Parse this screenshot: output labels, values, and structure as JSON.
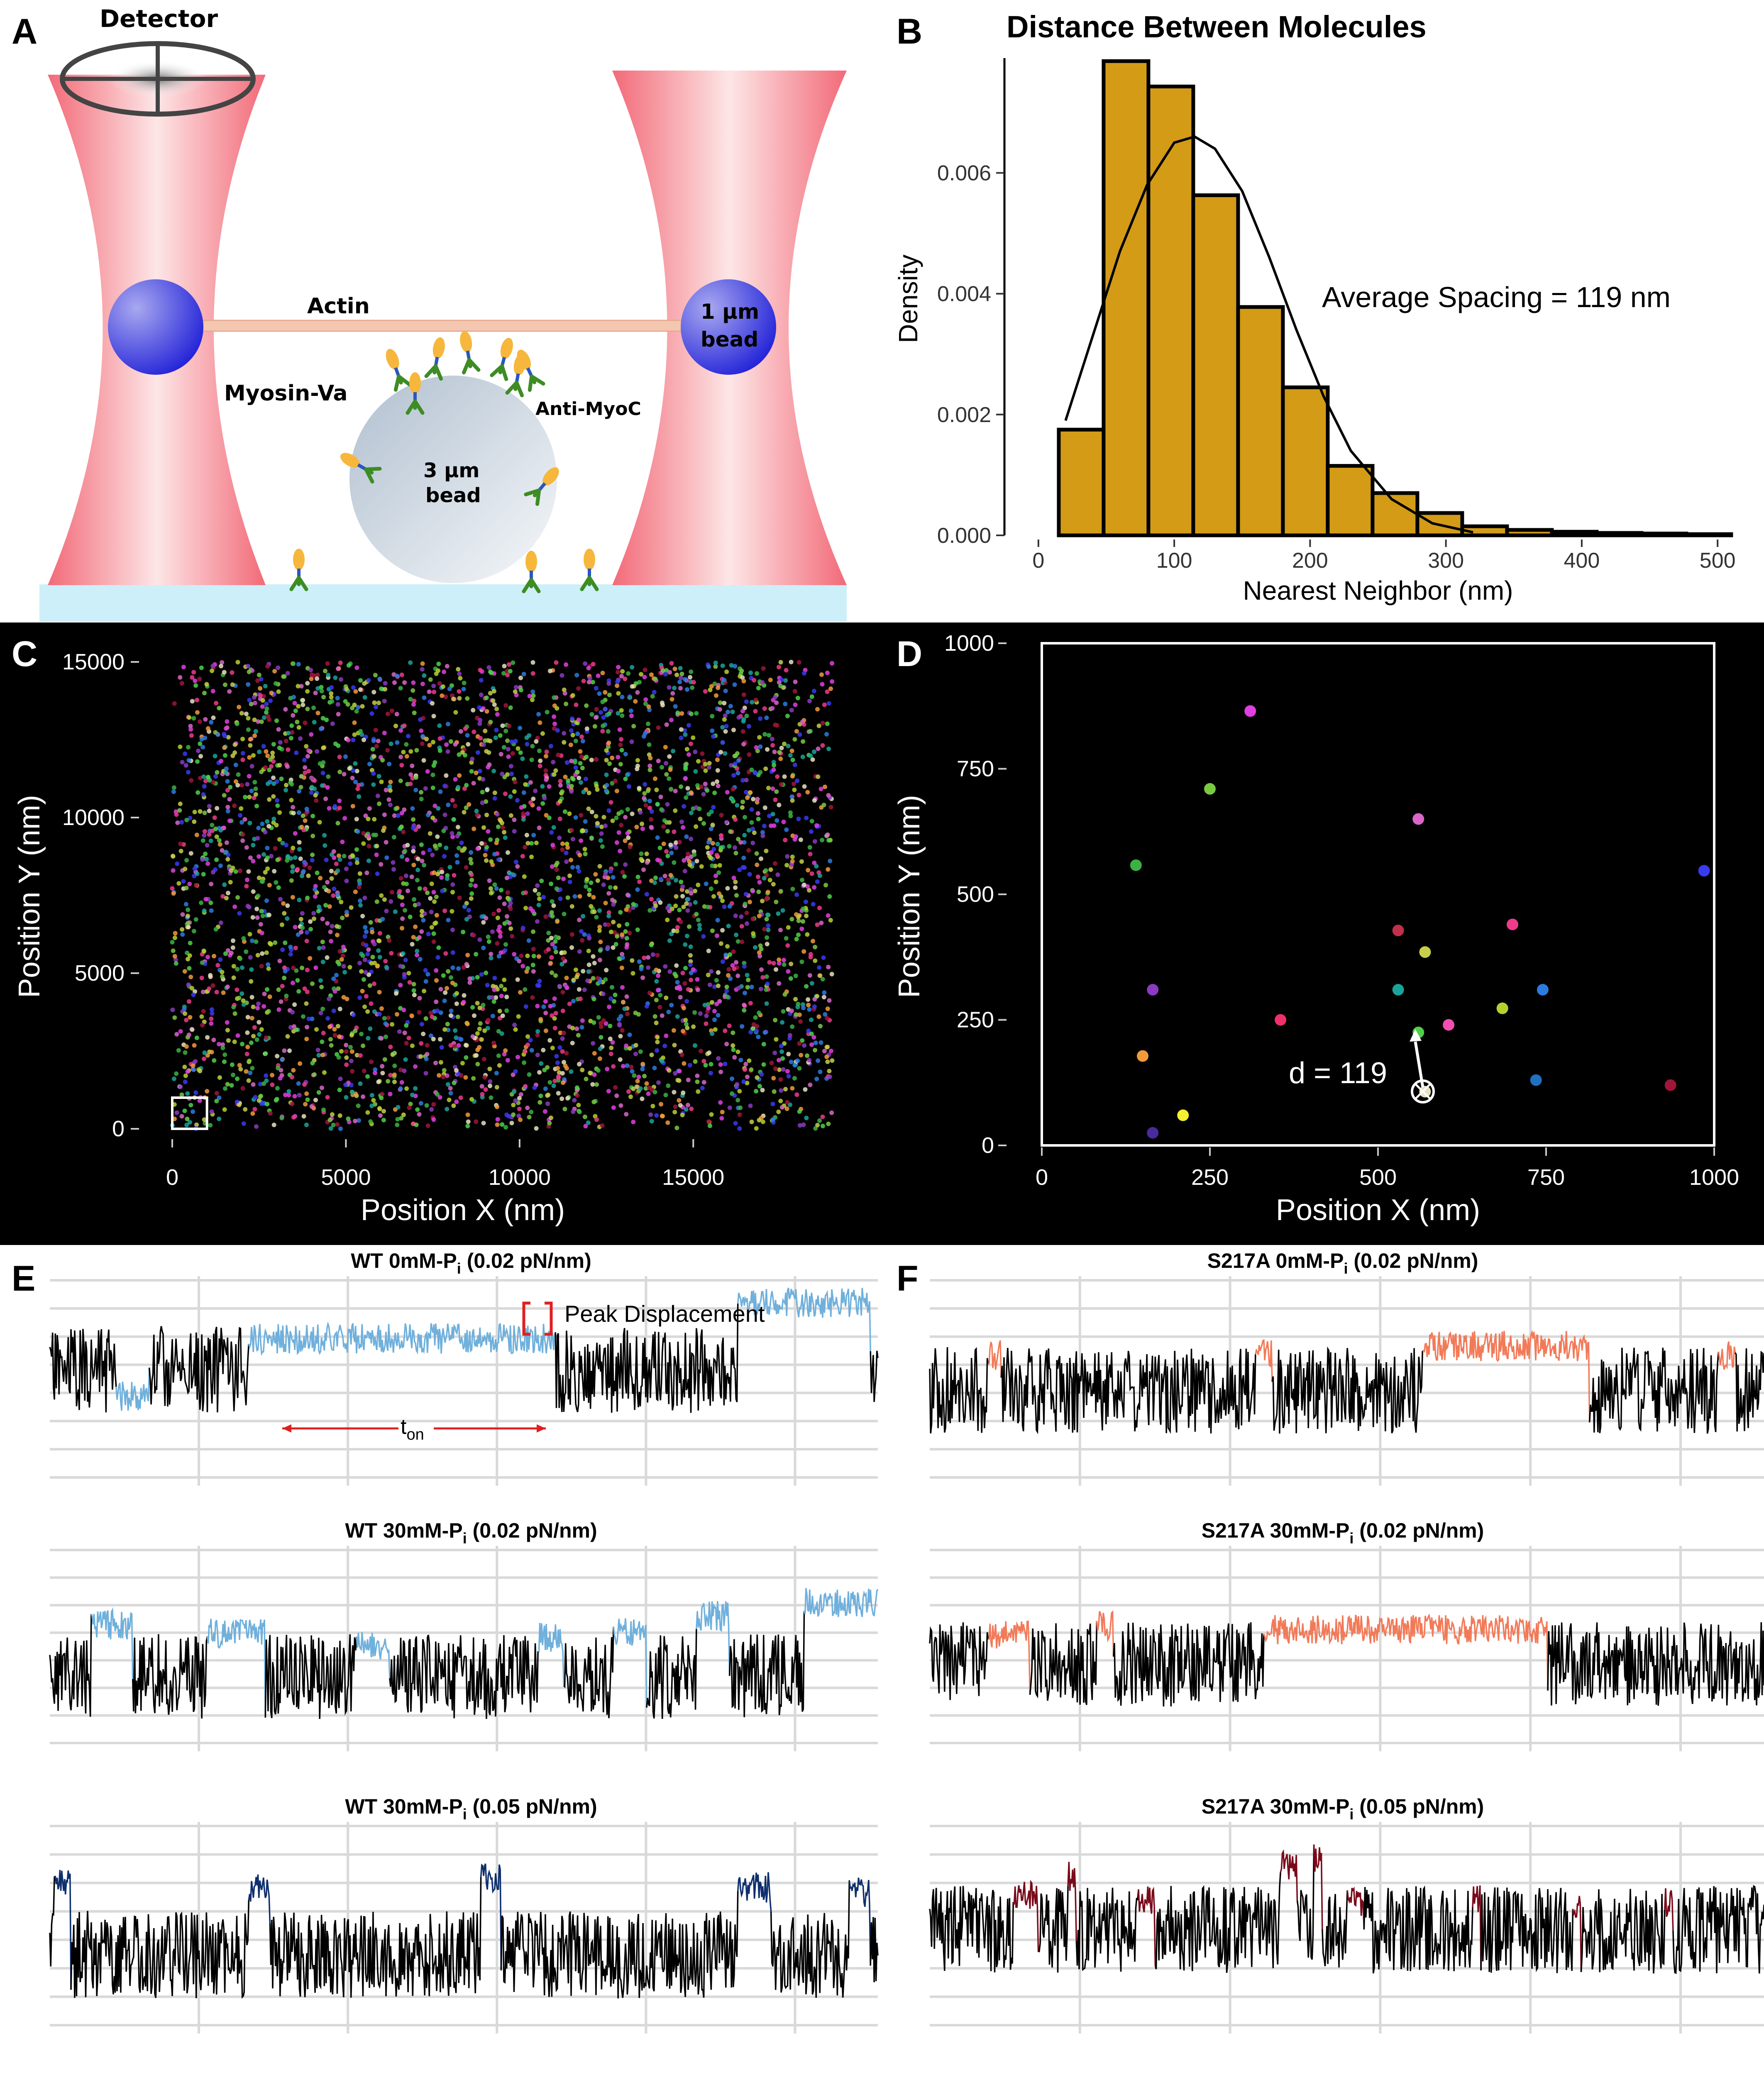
{
  "panel_labels": {
    "a": "A",
    "b": "B",
    "c": "C",
    "d": "D",
    "e": "E",
    "f": "F"
  },
  "panel_a": {
    "detector": "Detector",
    "actin": "Actin",
    "small_bead": [
      "1 µm",
      "bead"
    ],
    "myosin": "Myosin-Va",
    "anti_myoc": "Anti-MyoC",
    "large_bead": [
      "3 µm",
      "bead"
    ],
    "colors": {
      "trap": "#f26f7a",
      "bead_small": "#3333dd",
      "bead_large": "#c9d4df",
      "surface": "#cdeff9",
      "actin": "#f4c7b0"
    }
  },
  "chart_data": [
    {
      "id": "B",
      "type": "bar",
      "title": "Distance Between Molecules",
      "xlabel": "Nearest Neighbor (nm)",
      "ylabel": "Density",
      "annotation": "Average Spacing = 119 nm",
      "bin_edges": [
        15,
        48,
        81,
        114,
        147,
        180,
        213,
        246,
        279,
        312,
        345,
        378,
        411,
        444,
        477,
        510
      ],
      "values": [
        0.00175,
        0.00785,
        0.00743,
        0.00563,
        0.00378,
        0.00245,
        0.00115,
        0.0007,
        0.00037,
        0.00015,
        9e-05,
        6e-05,
        4e-05,
        3e-05,
        2e-05
      ],
      "xticks": [
        0,
        100,
        200,
        300,
        400,
        500
      ],
      "yticks": [
        0.0,
        0.002,
        0.004,
        0.006
      ],
      "ytick_labels": [
        "0.000",
        "0.002",
        "0.004",
        "0.006"
      ],
      "xlim": [
        -25,
        525
      ],
      "ylim": [
        0,
        0.0079
      ],
      "overlay": {
        "type": "density-curve",
        "x": [
          20,
          40,
          60,
          80,
          100,
          115,
          130,
          150,
          170,
          190,
          210,
          230,
          260,
          290,
          320
        ],
        "y": [
          0.0019,
          0.0033,
          0.0047,
          0.0058,
          0.0065,
          0.0066,
          0.0064,
          0.0057,
          0.0046,
          0.0034,
          0.0023,
          0.0014,
          0.0006,
          0.0002,
          5e-05
        ]
      },
      "color": "#d39b16"
    },
    {
      "id": "C",
      "type": "scatter",
      "xlabel": "Position X (nm)",
      "ylabel": "Position Y (nm)",
      "xticks": [
        0,
        5000,
        10000,
        15000
      ],
      "yticks": [
        0,
        5000,
        10000,
        15000
      ],
      "xlim": [
        0,
        19000
      ],
      "ylim": [
        0,
        15000
      ],
      "point_count": 4000,
      "highlight_box": {
        "x": [
          0,
          1000
        ],
        "y": [
          0,
          1000
        ]
      },
      "background": "#000000"
    },
    {
      "id": "D",
      "type": "scatter",
      "xlabel": "Position X (nm)",
      "ylabel": "Position Y (nm)",
      "xticks": [
        0,
        250,
        500,
        750,
        1000
      ],
      "yticks": [
        0,
        250,
        500,
        750,
        1000
      ],
      "xlim": [
        0,
        1000
      ],
      "ylim": [
        0,
        1000
      ],
      "annotation": "d = 119",
      "points": [
        {
          "x": 310,
          "y": 865,
          "color": "#e040e0"
        },
        {
          "x": 250,
          "y": 710,
          "color": "#7ac943"
        },
        {
          "x": 560,
          "y": 650,
          "color": "#d966c8"
        },
        {
          "x": 140,
          "y": 558,
          "color": "#3cb043"
        },
        {
          "x": 985,
          "y": 547,
          "color": "#3a3af0"
        },
        {
          "x": 700,
          "y": 440,
          "color": "#f03a8c"
        },
        {
          "x": 530,
          "y": 428,
          "color": "#c0304a"
        },
        {
          "x": 570,
          "y": 385,
          "color": "#c6cf4a"
        },
        {
          "x": 165,
          "y": 310,
          "color": "#8a3bbf"
        },
        {
          "x": 530,
          "y": 310,
          "color": "#1aa39a"
        },
        {
          "x": 745,
          "y": 310,
          "color": "#2b7be0"
        },
        {
          "x": 685,
          "y": 273,
          "color": "#b6d12e"
        },
        {
          "x": 355,
          "y": 250,
          "color": "#f0306a"
        },
        {
          "x": 605,
          "y": 240,
          "color": "#f24fb0"
        },
        {
          "x": 560,
          "y": 225,
          "color": "#4ed04a"
        },
        {
          "x": 150,
          "y": 178,
          "color": "#f29a3a"
        },
        {
          "x": 735,
          "y": 130,
          "color": "#2070c0"
        },
        {
          "x": 570,
          "y": 107,
          "color": "#e8e0c0"
        },
        {
          "x": 935,
          "y": 120,
          "color": "#a0153a"
        },
        {
          "x": 210,
          "y": 60,
          "color": "#f2f030"
        },
        {
          "x": 165,
          "y": 25,
          "color": "#4a2aa0"
        }
      ],
      "background": "#000000"
    }
  ],
  "traces": [
    {
      "id": "E1",
      "title": "WT 0mM-P",
      "sub": "i",
      "suffix": " (0.02 pN/nm)",
      "event_color": "#6fb0dc",
      "seed": 11,
      "annotations": {
        "peak": "Peak Displacement",
        "ton": "t",
        "ton_sub": "on"
      }
    },
    {
      "id": "E2",
      "title": "WT 30mM-P",
      "sub": "i",
      "suffix": " (0.02 pN/nm)",
      "event_color": "#6fb0dc",
      "seed": 23
    },
    {
      "id": "E3",
      "title": "WT 30mM-P",
      "sub": "i",
      "suffix": " (0.05 pN/nm)",
      "event_color": "#0e2f6e",
      "seed": 37
    },
    {
      "id": "F1",
      "title": "S217A 0mM-P",
      "sub": "i",
      "suffix": " (0.02 pN/nm)",
      "event_color": "#f27a58",
      "seed": 41
    },
    {
      "id": "F2",
      "title": "S217A 30mM-P",
      "sub": "i",
      "suffix": " (0.02 pN/nm)",
      "event_color": "#f27a58",
      "seed": 53
    },
    {
      "id": "F3",
      "title": "S217A 30mM-P",
      "sub": "i",
      "suffix": " (0.05 pN/nm)",
      "event_color": "#7a0a1a",
      "seed": 67
    }
  ]
}
